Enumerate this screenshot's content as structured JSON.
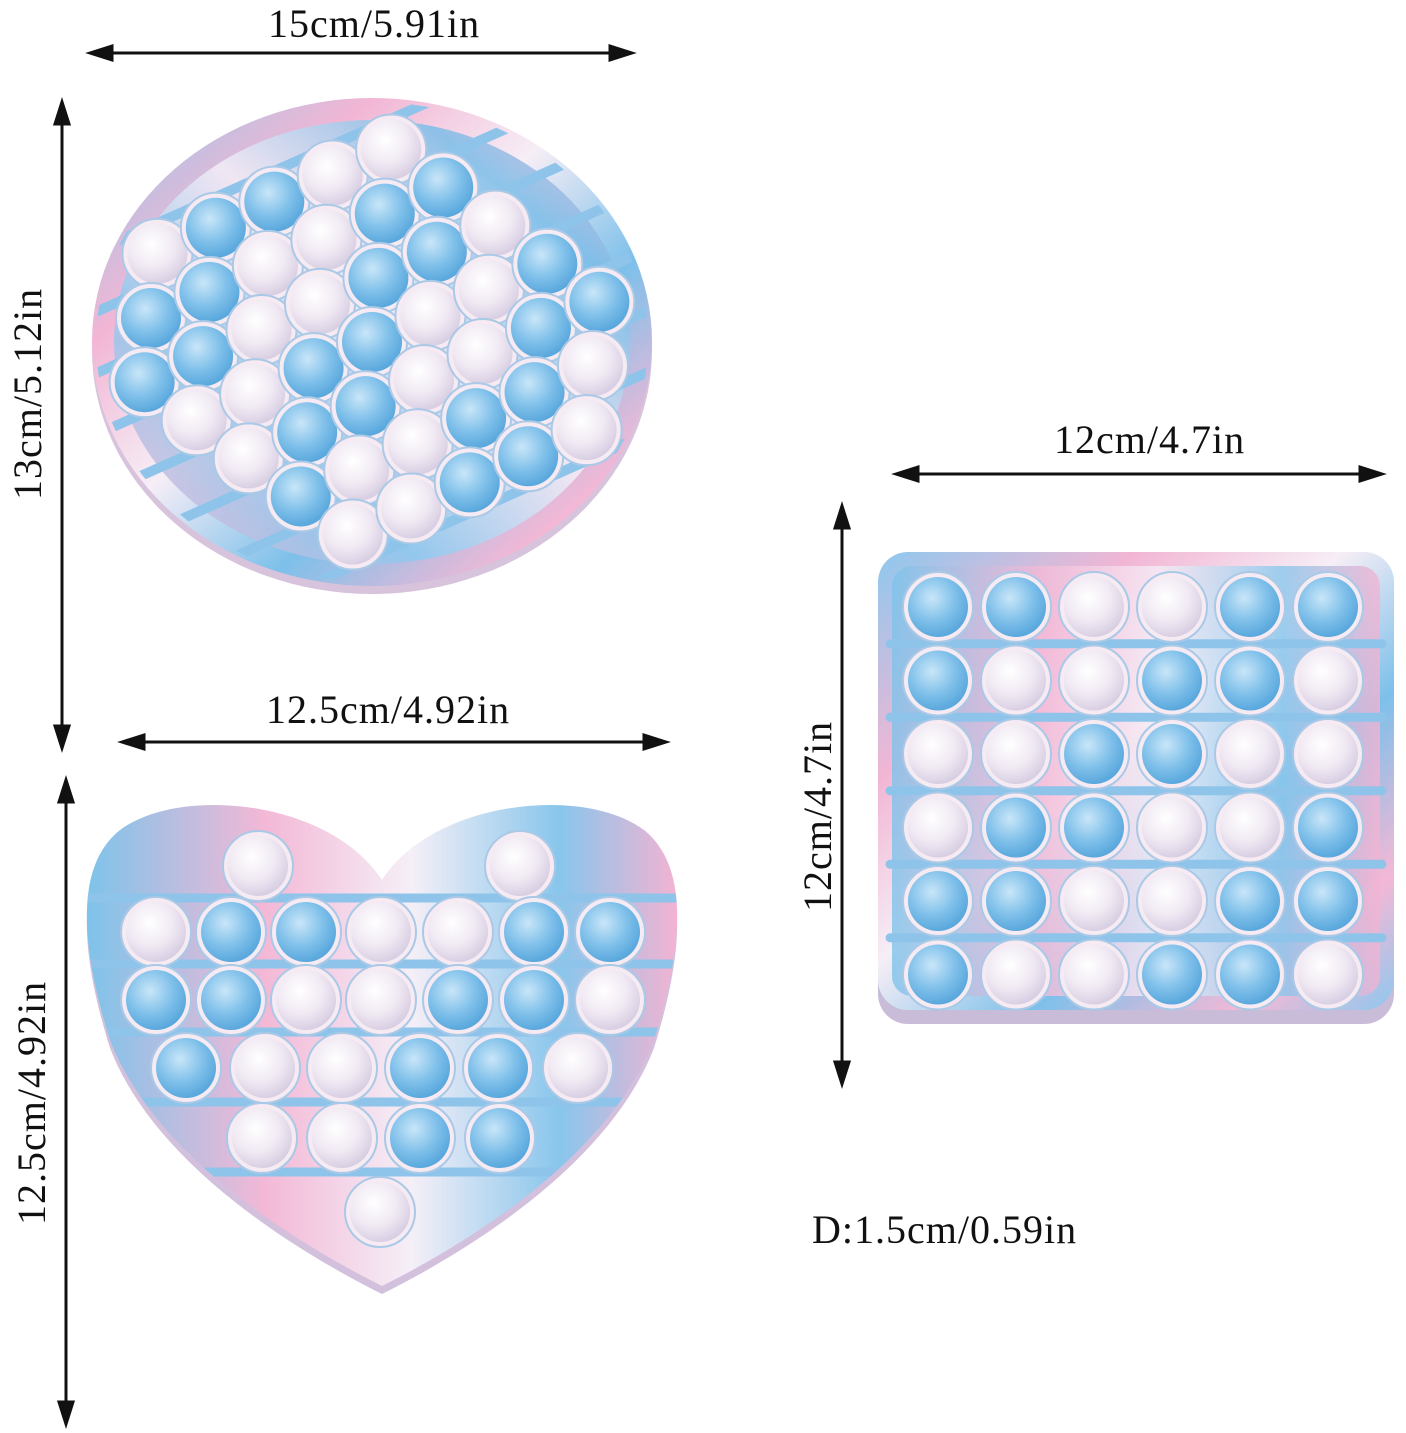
{
  "dimensions": {
    "circle_width": "15cm/5.91in",
    "circle_height": "13cm/5.12in",
    "heart_width": "12.5cm/4.92in",
    "heart_height": "12.5cm/4.92in",
    "square_width": "12cm/4.7in",
    "square_height": "12cm/4.7in",
    "depth": "D:1.5cm/0.59in"
  },
  "products": [
    {
      "shape": "circle",
      "icon": "round-pop-it-icon"
    },
    {
      "shape": "heart",
      "icon": "heart-pop-it-icon"
    },
    {
      "shape": "square",
      "icon": "square-pop-it-icon"
    }
  ],
  "colors": {
    "blue": "#7ec3ea",
    "pink": "#f3b3d2",
    "white": "#f4f0f6",
    "arrow": "#111111"
  }
}
